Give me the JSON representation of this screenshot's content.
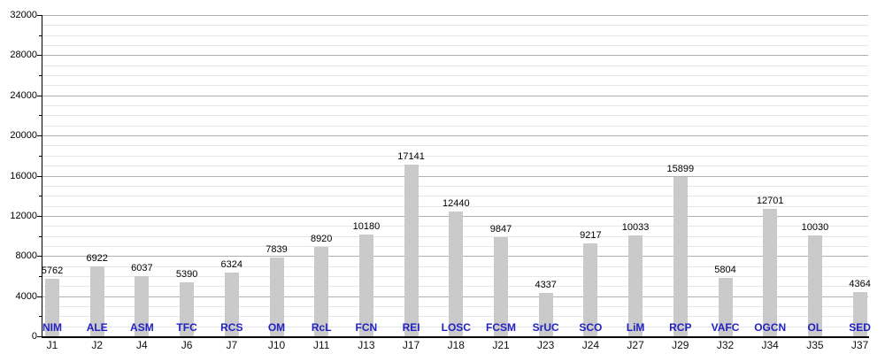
{
  "chart_data": {
    "type": "bar",
    "title": "",
    "xlabel": "",
    "ylabel": "",
    "categories": [
      "J1",
      "J2",
      "J4",
      "J6",
      "J7",
      "J10",
      "J11",
      "J13",
      "J17",
      "J18",
      "J21",
      "J23",
      "J24",
      "J27",
      "J29",
      "J32",
      "J34",
      "J35",
      "J37"
    ],
    "bar_text_labels": [
      "NIM",
      "ALE",
      "ASM",
      "TFC",
      "RCS",
      "OM",
      "RcL",
      "FCN",
      "REI",
      "LOSC",
      "FCSM",
      "SrUC",
      "SCO",
      "LiM",
      "RCP",
      "VAFC",
      "OGCN",
      "OL",
      "SED"
    ],
    "series": [
      {
        "name": "values",
        "values": [
          5762,
          6922,
          6037,
          5390,
          6324,
          7839,
          8920,
          10180,
          17141,
          12440,
          9847,
          4337,
          9217,
          10033,
          15899,
          5804,
          12701,
          10030,
          4364
        ]
      }
    ],
    "ylim": [
      0,
      32000
    ],
    "y_tick_labels": [
      "0",
      "4000",
      "8000",
      "12000",
      "16000",
      "20000",
      "24000",
      "28000",
      "32000"
    ],
    "y_label_step": 4000,
    "y_axis_tick_step": 2000,
    "y_minor_grid_step": 1000,
    "y_major_grid_step": 4000,
    "grid": "horizontal",
    "legend": "none",
    "colors": {
      "bar": "#cacaca",
      "bar_text_label": "#2222c3",
      "value_label": "#000000",
      "x_tick_label": "#111111",
      "y_tick_label": "#000000",
      "grid_minor": "#e6e6e6",
      "grid_major": "#b0b0b0",
      "axis": "#000000",
      "background": "#ffffff"
    }
  }
}
